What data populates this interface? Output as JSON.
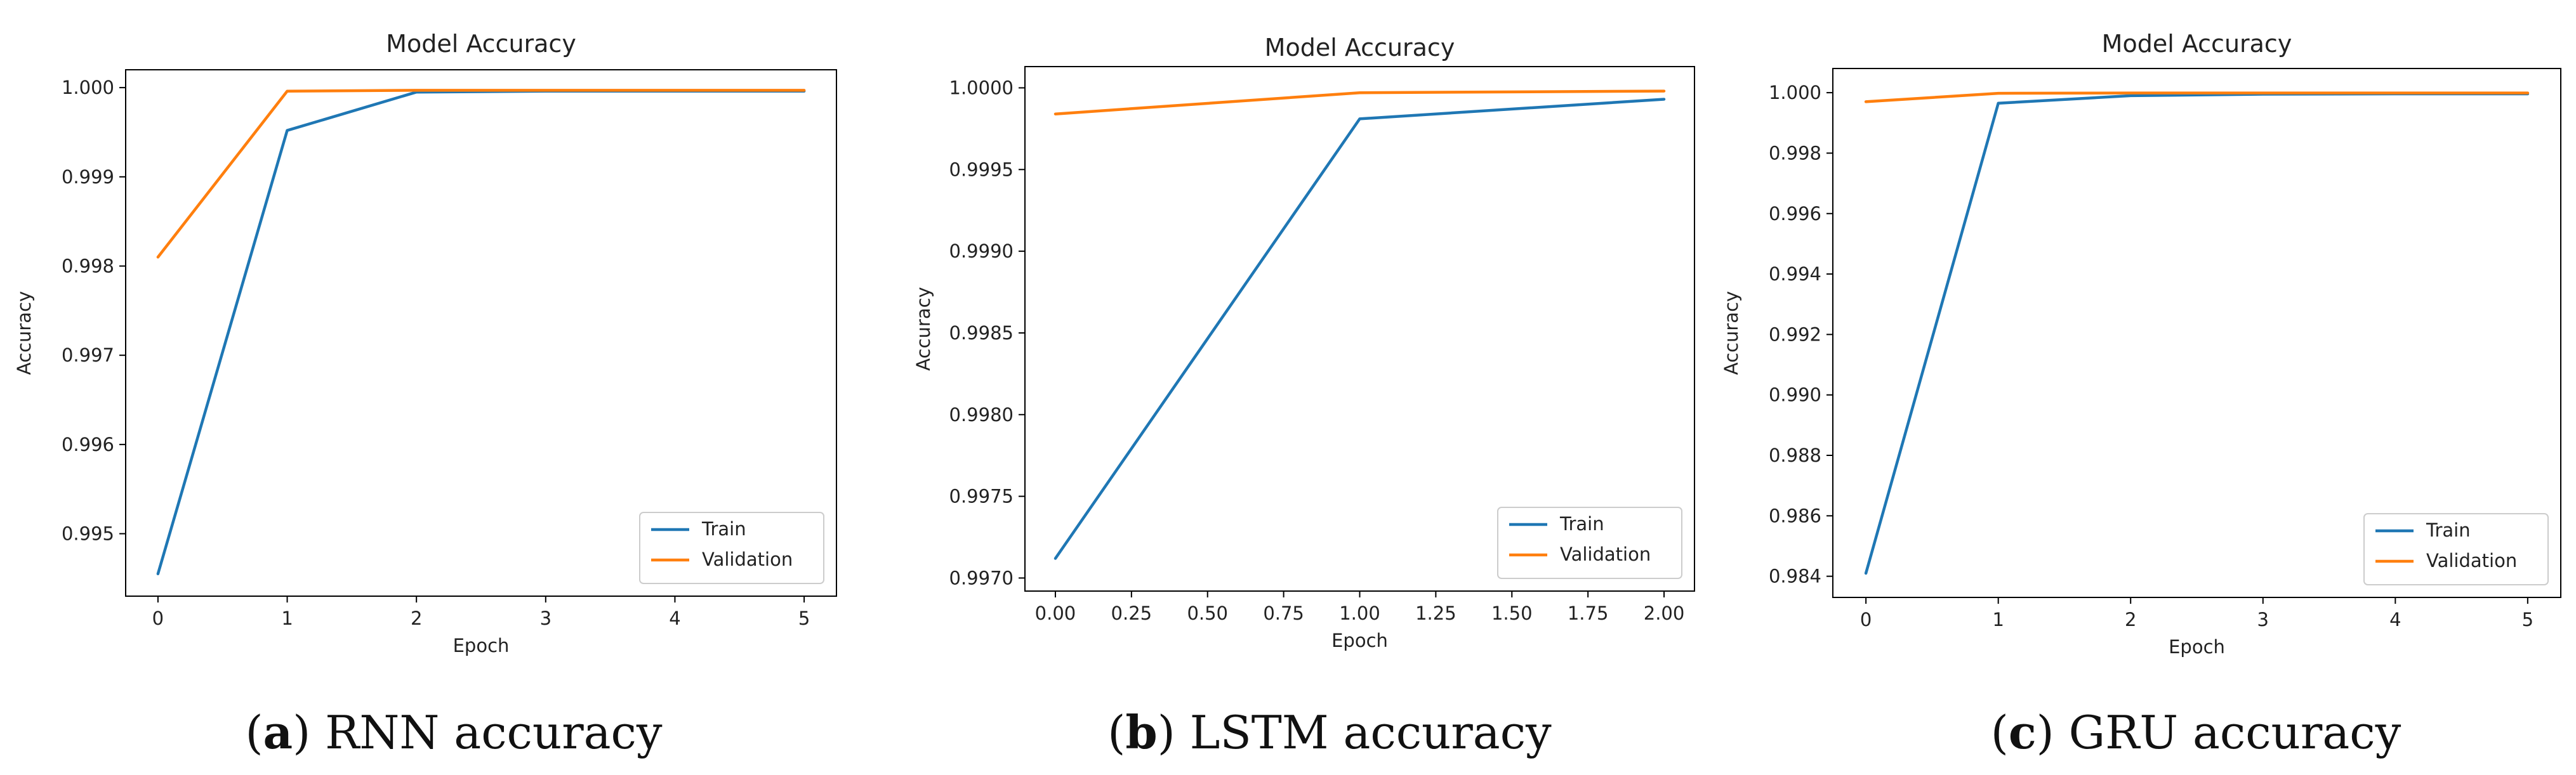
{
  "chart_data": [
    {
      "type": "line",
      "title": "Model Accuracy",
      "xlabel": "Epoch",
      "ylabel": "Accuracy",
      "x": [
        0,
        1,
        2,
        3,
        4,
        5
      ],
      "xticks": [
        0,
        1,
        2,
        3,
        4,
        5
      ],
      "xtick_labels": [
        "0",
        "1",
        "2",
        "3",
        "4",
        "5"
      ],
      "xlim": [
        -0.25,
        5.25
      ],
      "yticks": [
        0.995,
        0.996,
        0.997,
        0.998,
        0.999,
        1.0
      ],
      "ytick_labels": [
        "0.995",
        "0.996",
        "0.997",
        "0.998",
        "0.999",
        "1.000"
      ],
      "ylim": [
        0.9943,
        1.0002
      ],
      "series": [
        {
          "name": "Train",
          "color": "#1f77b4",
          "values": [
            0.99455,
            0.99952,
            0.99995,
            0.99996,
            0.99996,
            0.99996
          ]
        },
        {
          "name": "Validation",
          "color": "#ff7f0e",
          "values": [
            0.9981,
            0.99996,
            0.99997,
            0.99997,
            0.99997,
            0.99997
          ]
        }
      ],
      "legend": "bottom-right",
      "caption_letter": "a",
      "caption_text": "RNN accuracy"
    },
    {
      "type": "line",
      "title": "Model Accuracy",
      "xlabel": "Epoch",
      "ylabel": "Accuracy",
      "x": [
        0,
        1,
        2
      ],
      "xticks": [
        0,
        0.25,
        0.5,
        0.75,
        1.0,
        1.25,
        1.5,
        1.75,
        2.0
      ],
      "xtick_labels": [
        "0.00",
        "0.25",
        "0.50",
        "0.75",
        "1.00",
        "1.25",
        "1.50",
        "1.75",
        "2.00"
      ],
      "xlim": [
        -0.1,
        2.1
      ],
      "yticks": [
        0.997,
        0.9975,
        0.998,
        0.9985,
        0.999,
        0.9995,
        1.0
      ],
      "ytick_labels": [
        "0.9970",
        "0.9975",
        "0.9980",
        "0.9985",
        "0.9990",
        "0.9995",
        "1.0000"
      ],
      "ylim": [
        0.99692,
        1.00013
      ],
      "series": [
        {
          "name": "Train",
          "color": "#1f77b4",
          "values": [
            0.99712,
            0.99981,
            0.99993
          ]
        },
        {
          "name": "Validation",
          "color": "#ff7f0e",
          "values": [
            0.99984,
            0.99997,
            0.99998
          ]
        }
      ],
      "legend": "bottom-right",
      "caption_letter": "b",
      "caption_text": "LSTM accuracy"
    },
    {
      "type": "line",
      "title": "Model Accuracy",
      "xlabel": "Epoch",
      "ylabel": "Accuracy",
      "x": [
        0,
        1,
        2,
        3,
        4,
        5
      ],
      "xticks": [
        0,
        1,
        2,
        3,
        4,
        5
      ],
      "xtick_labels": [
        "0",
        "1",
        "2",
        "3",
        "4",
        "5"
      ],
      "xlim": [
        -0.25,
        5.25
      ],
      "yticks": [
        0.984,
        0.986,
        0.988,
        0.99,
        0.992,
        0.994,
        0.996,
        0.998,
        1.0
      ],
      "ytick_labels": [
        "0.984",
        "0.986",
        "0.988",
        "0.990",
        "0.992",
        "0.994",
        "0.996",
        "0.998",
        "1.000"
      ],
      "ylim": [
        0.9833,
        1.0008
      ],
      "series": [
        {
          "name": "Train",
          "color": "#1f77b4",
          "values": [
            0.9841,
            0.99965,
            0.9999,
            0.99995,
            0.99996,
            0.99996
          ]
        },
        {
          "name": "Validation",
          "color": "#ff7f0e",
          "values": [
            0.9997,
            0.99998,
            0.99999,
            0.99999,
            0.99999,
            0.99999
          ]
        }
      ],
      "legend": "bottom-right",
      "caption_letter": "c",
      "caption_text": "GRU accuracy"
    }
  ]
}
